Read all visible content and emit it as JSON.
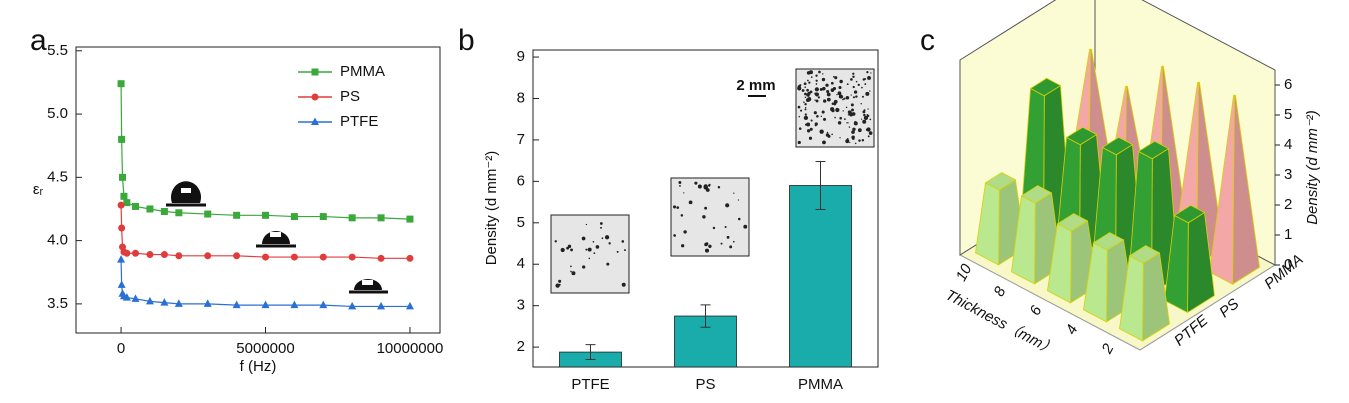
{
  "chart_data": [
    {
      "type": "line",
      "panel_label": "a",
      "xlabel": "f (Hz)",
      "ylabel": "εᵣ",
      "x": [
        0,
        20000,
        50000,
        100000,
        200000,
        500000,
        1000000,
        1500000,
        2000000,
        3000000,
        4000000,
        5000000,
        6000000,
        7000000,
        8000000,
        9000000,
        10000000
      ],
      "series": [
        {
          "name": "PMMA",
          "color": "#3aa83a",
          "marker": "square",
          "values": [
            5.24,
            4.8,
            4.5,
            4.35,
            4.3,
            4.27,
            4.25,
            4.23,
            4.22,
            4.21,
            4.2,
            4.2,
            4.19,
            4.19,
            4.18,
            4.18,
            4.17
          ]
        },
        {
          "name": "PS",
          "color": "#e03c3c",
          "marker": "circle",
          "values": [
            4.28,
            4.1,
            3.95,
            3.91,
            3.9,
            3.9,
            3.89,
            3.89,
            3.88,
            3.88,
            3.88,
            3.87,
            3.87,
            3.87,
            3.87,
            3.86,
            3.86
          ]
        },
        {
          "name": "PTFE",
          "color": "#2a6fd6",
          "marker": "triangle",
          "values": [
            3.85,
            3.65,
            3.58,
            3.56,
            3.55,
            3.54,
            3.52,
            3.51,
            3.5,
            3.5,
            3.49,
            3.49,
            3.49,
            3.49,
            3.48,
            3.48,
            3.48
          ]
        }
      ],
      "xlim": [
        -1560000,
        11040000
      ],
      "ylim": [
        3.27,
        5.53
      ],
      "xticks": [
        0,
        5000000,
        10000000
      ],
      "yticks": [
        3.5,
        {
          "value": 4.0,
          "label": "4.0"
        },
        4.5,
        {
          "value": 5.0,
          "label": "5.0"
        },
        5.5
      ],
      "legend": "upper right"
    },
    {
      "type": "bar",
      "panel_label": "b",
      "ylabel": "Density (d mm⁻²)",
      "categories": [
        "PTFE",
        "PS",
        "PMMA"
      ],
      "values": [
        1.88,
        2.75,
        5.9
      ],
      "errors": [
        0.18,
        0.27,
        0.58
      ],
      "color": "#1aabab",
      "ylim": [
        1.52,
        9.17
      ],
      "yticks": [
        2,
        3,
        4,
        5,
        6,
        7,
        8,
        9
      ],
      "annotations": [
        "2 mm"
      ]
    },
    {
      "type": "bar3d",
      "panel_label": "c",
      "xlabel": "Thickness（mm）",
      "zlabel": "Density (d mm⁻²)",
      "categories": [
        "10",
        "8",
        "6",
        "4",
        "2"
      ],
      "series": [
        {
          "name": "PTFE",
          "color": "#b9e88e",
          "values": [
            2.3,
            2.5,
            2.2,
            2.2,
            2.4
          ]
        },
        {
          "name": "PS",
          "color": "#33a033",
          "values": [
            4.5,
            3.5,
            3.8,
            4.3,
            2.8
          ]
        },
        {
          "name": "PMMA",
          "color": "#f4a7a7",
          "values": [
            4.8,
            4.2,
            5.5,
            5.6,
            5.8
          ]
        }
      ],
      "zlim": [
        0,
        6.5
      ],
      "zticks": [
        0,
        1,
        2,
        3,
        4,
        5,
        6
      ]
    }
  ]
}
